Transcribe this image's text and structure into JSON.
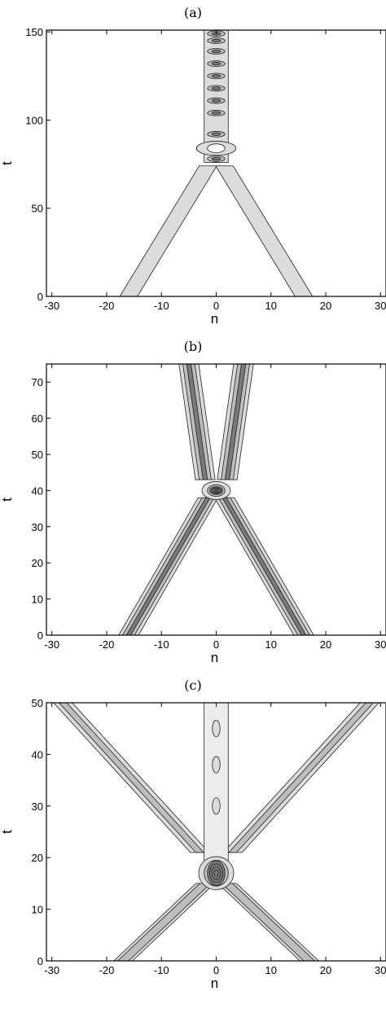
{
  "chart_data": [
    {
      "type": "contour",
      "title": "(a)",
      "xlabel": "n",
      "ylabel": "t",
      "xlim": [
        -31,
        31
      ],
      "ylim": [
        0,
        151
      ],
      "xticks": [
        -30,
        -20,
        -10,
        0,
        10,
        20,
        30
      ],
      "yticks": [
        0,
        50,
        100,
        150
      ],
      "features": {
        "incoming_branches": [
          {
            "n_start": -16,
            "t_start": 0,
            "n_end": -1.5,
            "t_end": 74
          },
          {
            "n_start": 16,
            "t_start": 0,
            "n_end": 1.5,
            "t_end": 74
          }
        ],
        "merge_t": 76,
        "bound_state_peaks_t": [
          78,
          92,
          104,
          111,
          118,
          125,
          132,
          139,
          145,
          149
        ]
      }
    },
    {
      "type": "contour",
      "title": "(b)",
      "xlabel": "n",
      "ylabel": "t",
      "xlim": [
        -31,
        31
      ],
      "ylim": [
        0,
        75
      ],
      "xticks": [
        -30,
        -20,
        -10,
        0,
        10,
        20,
        30
      ],
      "yticks": [
        0,
        10,
        20,
        30,
        40,
        50,
        60,
        70
      ],
      "features": {
        "incoming_branches": [
          {
            "n_start": -16,
            "t_start": 0,
            "n_end": -1.5,
            "t_end": 38
          },
          {
            "n_start": 16,
            "t_start": 0,
            "n_end": 1.5,
            "t_end": 38
          }
        ],
        "collision_t": 40,
        "outgoing_branches": [
          {
            "n_start": -2,
            "t_start": 43,
            "n_end": -5,
            "t_end": 75
          },
          {
            "n_start": 2,
            "t_start": 43,
            "n_end": 5,
            "t_end": 75
          }
        ]
      }
    },
    {
      "type": "contour",
      "title": "(c)",
      "xlabel": "n",
      "ylabel": "t",
      "xlim": [
        -31,
        31
      ],
      "ylim": [
        0,
        50
      ],
      "xticks": [
        -30,
        -20,
        -10,
        0,
        10,
        20,
        30
      ],
      "yticks": [
        0,
        10,
        20,
        30,
        40,
        50
      ],
      "features": {
        "incoming_branches": [
          {
            "n_start": -17,
            "t_start": 0,
            "n_end": -2,
            "t_end": 15
          },
          {
            "n_start": 17,
            "t_start": 0,
            "n_end": 2,
            "t_end": 15
          }
        ],
        "collision_t": 17,
        "outgoing_branches": [
          {
            "n_start": -3,
            "t_start": 21,
            "n_end": -28,
            "t_end": 50
          },
          {
            "n_start": 3,
            "t_start": 21,
            "n_end": 28,
            "t_end": 50
          }
        ],
        "central_column_peaks_t": [
          30,
          38,
          45
        ]
      }
    }
  ]
}
